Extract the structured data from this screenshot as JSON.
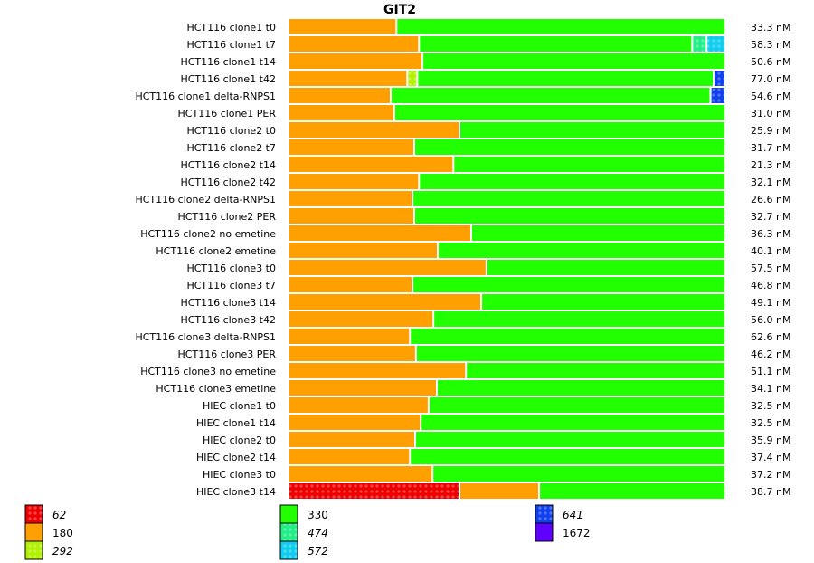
{
  "chart_data": {
    "type": "bar",
    "orientation": "horizontal-stacked-proportional",
    "title": "GIT2",
    "xlabel": "",
    "ylabel": "",
    "legend_position": "bottom",
    "legend": [
      {
        "label": "62",
        "color": "#ee0000",
        "pattern": true,
        "italic": true
      },
      {
        "label": "180",
        "color": "#ffa000",
        "pattern": false,
        "italic": false
      },
      {
        "label": "292",
        "color": "#b0f000",
        "pattern": true,
        "italic": true
      },
      {
        "label": "330",
        "color": "#22ff00",
        "pattern": false,
        "italic": false
      },
      {
        "label": "474",
        "color": "#22ee88",
        "pattern": true,
        "italic": true
      },
      {
        "label": "572",
        "color": "#10ccee",
        "pattern": true,
        "italic": true
      },
      {
        "label": "641",
        "color": "#1040ee",
        "pattern": true,
        "italic": true
      },
      {
        "label": "1672",
        "color": "#6000ff",
        "pattern": false,
        "italic": false
      }
    ],
    "categories": [
      "HCT116 clone1 t0",
      "HCT116 clone1 t7",
      "HCT116 clone1 t14",
      "HCT116 clone1 t42",
      "HCT116 clone1 delta-RNPS1",
      "HCT116 clone1 PER",
      "HCT116 clone2 t0",
      "HCT116 clone2 t7",
      "HCT116 clone2 t14",
      "HCT116 clone2 t42",
      "HCT116 clone2 delta-RNPS1",
      "HCT116 clone2 PER",
      "HCT116 clone2 no emetine",
      "HCT116 clone2 emetine",
      "HCT116 clone3 t0",
      "HCT116 clone3 t7",
      "HCT116 clone3 t14",
      "HCT116 clone3 t42",
      "HCT116 clone3 delta-RNPS1",
      "HCT116 clone3 PER",
      "HCT116 clone3 no emetine",
      "HCT116 clone3 emetine",
      "HIEC clone1 t0",
      "HIEC clone1 t14",
      "HIEC clone2 t0",
      "HIEC clone2 t14",
      "HIEC clone3 t0",
      "HIEC clone3 t14"
    ],
    "totals": [
      "33.3 nM",
      "58.3 nM",
      "50.6 nM",
      "77.0 nM",
      "54.6 nM",
      "31.0 nM",
      "25.9 nM",
      "31.7 nM",
      "21.3 nM",
      "32.1 nM",
      "26.6 nM",
      "32.7 nM",
      "36.3 nM",
      "40.1 nM",
      "57.5 nM",
      "46.8 nM",
      "49.1 nM",
      "56.0 nM",
      "62.6 nM",
      "46.2 nM",
      "51.1 nM",
      "34.1 nM",
      "32.5 nM",
      "32.5 nM",
      "35.9 nM",
      "37.4 nM",
      "37.2 nM",
      "38.7 nM"
    ],
    "segments": [
      [
        {
          "k": "180",
          "f": 0.248
        },
        {
          "k": "330",
          "f": 0.752
        }
      ],
      [
        {
          "k": "180",
          "f": 0.3
        },
        {
          "k": "330",
          "f": 0.628
        },
        {
          "k": "474",
          "f": 0.033
        },
        {
          "k": "572",
          "f": 0.039
        }
      ],
      [
        {
          "k": "180",
          "f": 0.308
        },
        {
          "k": "330",
          "f": 0.692
        }
      ],
      [
        {
          "k": "180",
          "f": 0.273
        },
        {
          "k": "292",
          "f": 0.023
        },
        {
          "k": "330",
          "f": 0.681
        },
        {
          "k": "641",
          "f": 0.023
        }
      ],
      [
        {
          "k": "180",
          "f": 0.235
        },
        {
          "k": "330",
          "f": 0.735
        },
        {
          "k": "641",
          "f": 0.03
        }
      ],
      [
        {
          "k": "180",
          "f": 0.243
        },
        {
          "k": "330",
          "f": 0.757
        }
      ],
      [
        {
          "k": "180",
          "f": 0.393
        },
        {
          "k": "330",
          "f": 0.607
        }
      ],
      [
        {
          "k": "180",
          "f": 0.289
        },
        {
          "k": "330",
          "f": 0.711
        }
      ],
      [
        {
          "k": "180",
          "f": 0.379
        },
        {
          "k": "330",
          "f": 0.621
        }
      ],
      [
        {
          "k": "180",
          "f": 0.3
        },
        {
          "k": "330",
          "f": 0.7
        }
      ],
      [
        {
          "k": "180",
          "f": 0.285
        },
        {
          "k": "330",
          "f": 0.715
        }
      ],
      [
        {
          "k": "180",
          "f": 0.289
        },
        {
          "k": "330",
          "f": 0.711
        }
      ],
      [
        {
          "k": "180",
          "f": 0.42
        },
        {
          "k": "330",
          "f": 0.58
        }
      ],
      [
        {
          "k": "180",
          "f": 0.343
        },
        {
          "k": "330",
          "f": 0.657
        }
      ],
      [
        {
          "k": "180",
          "f": 0.455
        },
        {
          "k": "330",
          "f": 0.545
        }
      ],
      [
        {
          "k": "180",
          "f": 0.285
        },
        {
          "k": "330",
          "f": 0.715
        }
      ],
      [
        {
          "k": "180",
          "f": 0.443
        },
        {
          "k": "330",
          "f": 0.557
        }
      ],
      [
        {
          "k": "180",
          "f": 0.333
        },
        {
          "k": "330",
          "f": 0.667
        }
      ],
      [
        {
          "k": "180",
          "f": 0.279
        },
        {
          "k": "330",
          "f": 0.721
        }
      ],
      [
        {
          "k": "180",
          "f": 0.293
        },
        {
          "k": "330",
          "f": 0.707
        }
      ],
      [
        {
          "k": "180",
          "f": 0.408
        },
        {
          "k": "330",
          "f": 0.592
        }
      ],
      [
        {
          "k": "180",
          "f": 0.341
        },
        {
          "k": "330",
          "f": 0.659
        }
      ],
      [
        {
          "k": "180",
          "f": 0.322
        },
        {
          "k": "330",
          "f": 0.678
        }
      ],
      [
        {
          "k": "180",
          "f": 0.304
        },
        {
          "k": "330",
          "f": 0.696
        }
      ],
      [
        {
          "k": "180",
          "f": 0.291
        },
        {
          "k": "330",
          "f": 0.709
        }
      ],
      [
        {
          "k": "180",
          "f": 0.279
        },
        {
          "k": "330",
          "f": 0.721
        }
      ],
      [
        {
          "k": "180",
          "f": 0.331
        },
        {
          "k": "330",
          "f": 0.669
        }
      ],
      [
        {
          "k": "62",
          "f": 0.393
        },
        {
          "k": "180",
          "f": 0.183
        },
        {
          "k": "330",
          "f": 0.424
        }
      ]
    ]
  }
}
